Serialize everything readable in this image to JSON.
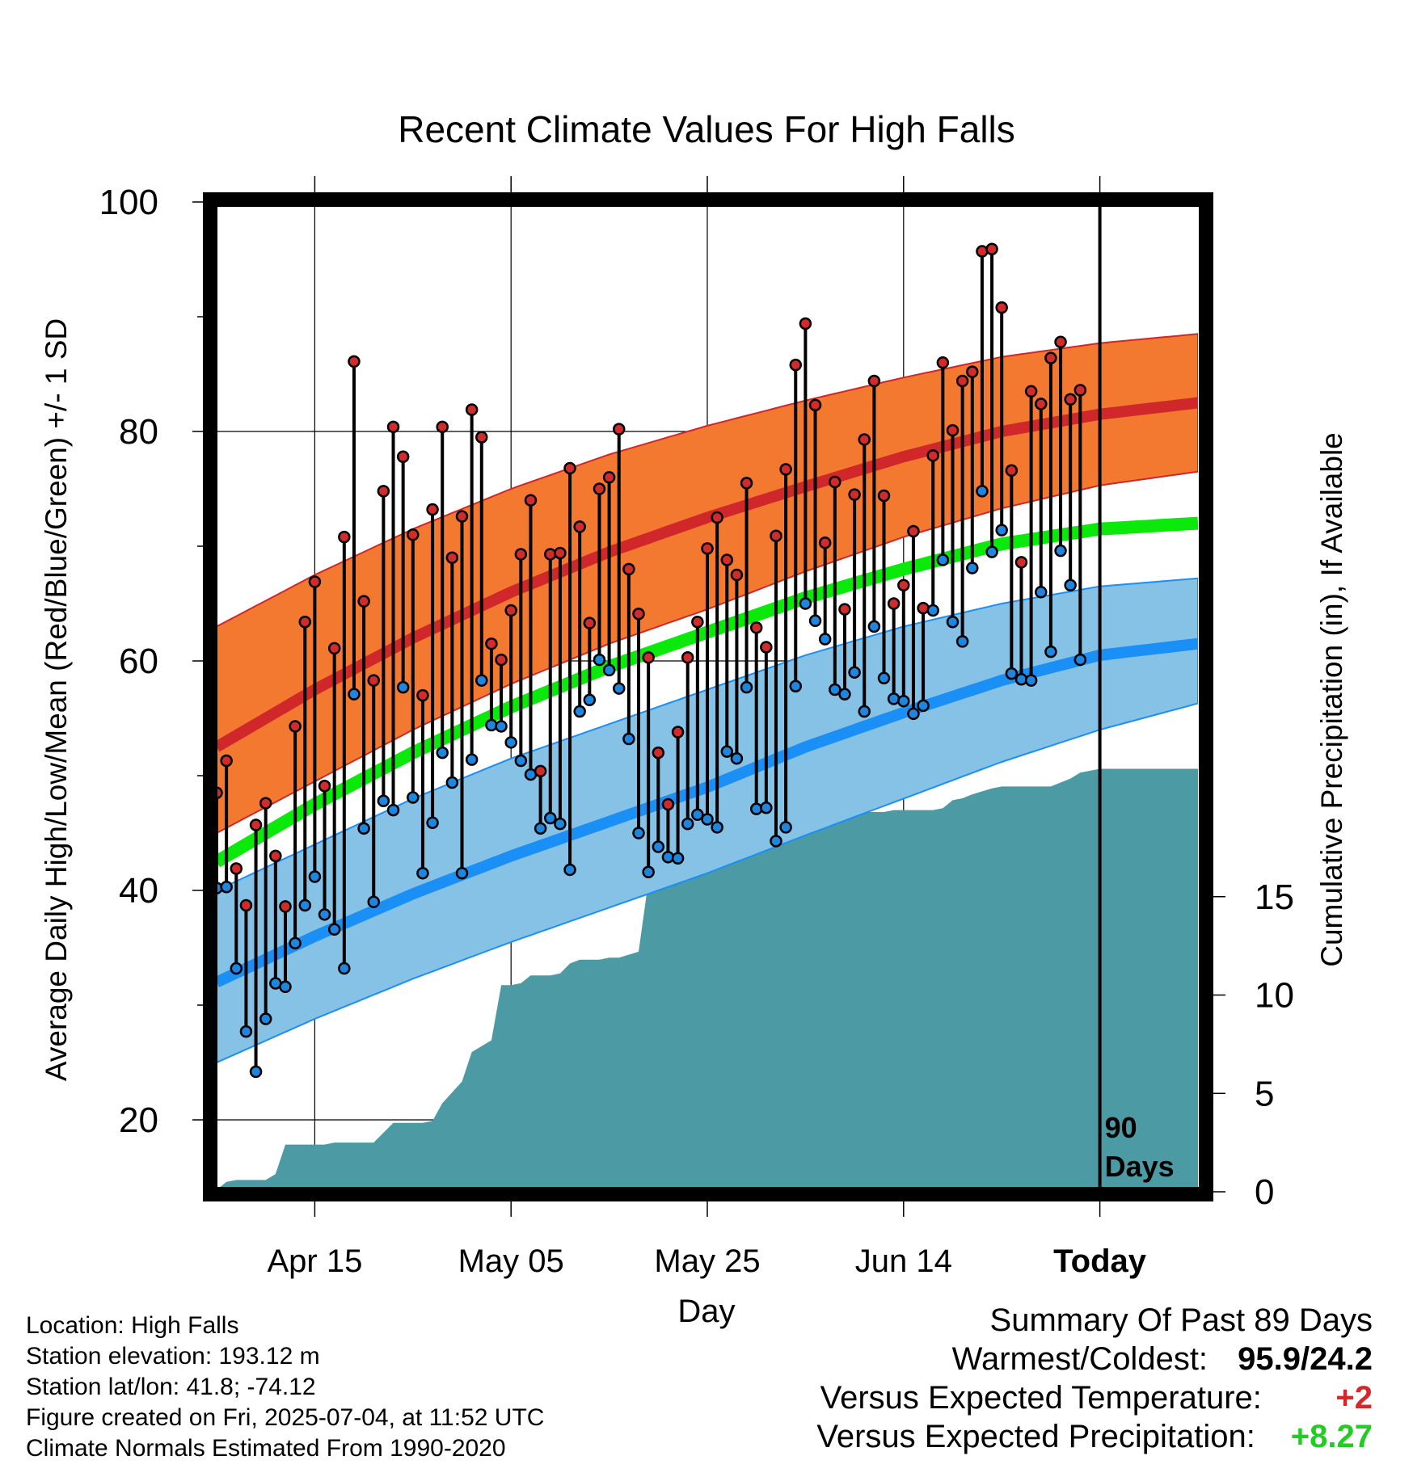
{
  "chart_data": {
    "type": "line",
    "title": "Recent Climate Values For High Falls",
    "xlabel": "Day",
    "ylabel": "Average Daily High/Low/Mean (Red/Blue/Green) +/- 1 SD",
    "ylabel_right": "Cumulative Precipitation (in), If Available",
    "x_ticks": [
      "Apr 15",
      "May 05",
      "May 25",
      "Jun 14",
      "Today"
    ],
    "y_ticks": [
      "20",
      "40",
      "60",
      "80",
      "100"
    ],
    "y2_ticks": [
      "0",
      "5",
      "10",
      "15"
    ],
    "xlim_days": [
      1,
      101
    ],
    "ylim": [
      14,
      103
    ],
    "y2lim": [
      0,
      36
    ],
    "today_day": 91,
    "today_label": [
      "90",
      "Days"
    ],
    "x_tick_days": [
      11,
      31,
      51,
      71,
      91
    ],
    "normals": {
      "days": [
        1,
        11,
        21,
        31,
        41,
        51,
        61,
        71,
        81,
        91,
        101
      ],
      "high_mean": [
        52.5,
        57.5,
        62.0,
        66.0,
        69.5,
        72.5,
        75.2,
        77.8,
        80.0,
        81.5,
        82.5
      ],
      "high_upper": [
        63.0,
        67.5,
        71.5,
        75.0,
        78.0,
        80.5,
        82.7,
        84.7,
        86.5,
        87.7,
        88.5
      ],
      "high_lower": [
        45.0,
        49.5,
        54.0,
        58.0,
        61.5,
        64.5,
        67.8,
        70.8,
        73.3,
        75.3,
        76.5
      ],
      "mean": [
        42.5,
        47.5,
        52.0,
        56.0,
        59.5,
        62.5,
        65.5,
        68.0,
        70.2,
        71.5,
        72.0
      ],
      "low_mean": [
        32.0,
        36.0,
        39.7,
        43.0,
        46.0,
        49.0,
        52.5,
        55.5,
        58.3,
        60.5,
        61.5
      ],
      "low_upper": [
        40.0,
        44.0,
        48.0,
        51.5,
        54.5,
        57.5,
        60.5,
        63.0,
        65.0,
        66.5,
        67.2
      ],
      "low_lower": [
        25.0,
        28.8,
        32.3,
        35.5,
        38.5,
        41.5,
        44.8,
        48.0,
        51.2,
        54.0,
        56.3
      ]
    },
    "daily_high": [
      48.5,
      51.3,
      41.9,
      38.7,
      45.7,
      47.6,
      43.0,
      38.6,
      54.3,
      63.4,
      66.9,
      49.1,
      61.1,
      70.8,
      86.1,
      65.2,
      58.3,
      74.8,
      80.4,
      77.8,
      71.0,
      57.0,
      73.2,
      80.4,
      69.0,
      72.6,
      81.9,
      79.5,
      61.5,
      60.1,
      64.4,
      69.3,
      74.0,
      50.4,
      69.3,
      69.4,
      76.8,
      71.7,
      63.3,
      75.0,
      76.0,
      80.2,
      68.0,
      64.1,
      60.3,
      52.0,
      47.5,
      53.8,
      60.3,
      63.4,
      69.8,
      72.5,
      68.8,
      67.5,
      75.5,
      62.9,
      61.2,
      70.9,
      76.7,
      85.8,
      89.4,
      82.3,
      70.3,
      75.6,
      64.5,
      74.5,
      79.3,
      84.4,
      74.4,
      65.0,
      66.6,
      71.3,
      64.6,
      77.9,
      86.0,
      80.1,
      84.4,
      85.2,
      95.7,
      95.9,
      90.8,
      76.6,
      68.6,
      83.5,
      82.4,
      86.4,
      87.8,
      82.8,
      83.6
    ],
    "daily_low": [
      40.2,
      40.3,
      33.2,
      27.7,
      24.2,
      28.8,
      31.9,
      31.6,
      35.4,
      38.7,
      41.2,
      37.9,
      36.6,
      33.2,
      57.1,
      45.4,
      39.0,
      47.8,
      47.0,
      57.7,
      48.1,
      41.5,
      45.9,
      52.0,
      49.4,
      41.5,
      51.4,
      58.3,
      54.4,
      54.3,
      52.9,
      51.3,
      50.1,
      45.4,
      46.3,
      45.8,
      41.8,
      55.6,
      56.6,
      60.1,
      59.2,
      57.6,
      53.2,
      45.0,
      41.6,
      43.8,
      42.9,
      42.8,
      45.8,
      46.6,
      46.2,
      45.5,
      52.1,
      51.5,
      57.7,
      47.1,
      47.2,
      44.3,
      45.5,
      57.8,
      65.0,
      63.5,
      61.9,
      57.5,
      57.1,
      59.0,
      55.6,
      63.0,
      58.5,
      56.7,
      56.5,
      55.4,
      56.1,
      64.4,
      68.8,
      63.4,
      61.7,
      68.1,
      74.8,
      69.5,
      71.4,
      58.9,
      58.4,
      58.3,
      66.0,
      60.8,
      69.6,
      66.6,
      60.1
    ],
    "cumulative_precip": {
      "days": [
        1,
        2,
        3,
        6,
        7,
        8,
        9,
        12,
        13,
        15,
        16,
        17,
        19,
        20,
        22,
        23,
        24,
        26,
        27,
        28,
        29,
        30,
        31,
        32,
        33,
        34,
        35,
        36,
        37,
        38,
        39,
        40,
        41,
        42,
        44,
        45,
        46,
        47,
        49,
        51,
        52,
        53,
        54,
        55,
        56,
        57,
        58,
        59,
        61,
        62,
        63,
        65,
        66,
        67,
        69,
        70,
        71,
        72,
        73,
        74,
        75,
        76,
        77,
        78,
        80,
        81,
        82,
        83,
        86,
        87,
        88,
        89,
        90,
        91,
        101
      ],
      "values": [
        0.1,
        0.5,
        0.6,
        0.6,
        0.9,
        2.4,
        2.4,
        2.4,
        2.5,
        2.5,
        2.5,
        2.5,
        3.5,
        3.5,
        3.5,
        3.6,
        4.5,
        5.6,
        7.1,
        7.4,
        7.7,
        10.5,
        10.5,
        10.6,
        11.0,
        11.0,
        11.0,
        11.1,
        11.6,
        11.8,
        11.8,
        11.8,
        11.9,
        11.9,
        12.2,
        15.8,
        15.8,
        15.8,
        15.8,
        16.6,
        16.9,
        17.0,
        17.0,
        17.4,
        17.4,
        17.5,
        18.1,
        18.8,
        19.0,
        19.1,
        19.3,
        19.3,
        19.3,
        19.3,
        19.3,
        19.4,
        19.4,
        19.4,
        19.4,
        19.4,
        19.5,
        19.9,
        20.0,
        20.2,
        20.5,
        20.6,
        20.6,
        20.6,
        20.6,
        20.8,
        21.0,
        21.3,
        21.4,
        21.5,
        21.5
      ]
    },
    "colors": {
      "high_band": "#f47930",
      "high_line": "#d0272b",
      "mean_line": "#0be90b",
      "low_band": "#86c1e6",
      "low_line": "#1a8ff5",
      "precip": "#4b9aa4",
      "high_marker": "#d12b2b",
      "low_marker": "#1f86e0"
    },
    "grid": true
  },
  "info": {
    "location": "Location: High Falls",
    "elevation": "Station elevation: 193.12 m",
    "latlon": "Station lat/lon: 41.8; -74.12",
    "created": "Figure created on Fri, 2025-07-04, at 11:52 UTC",
    "normals": "Climate Normals Estimated From 1990-2020"
  },
  "summary": {
    "title": "Summary Of Past 89 Days",
    "warm_label": "Warmest/Coldest:",
    "warm_value": "95.9/24.2",
    "temp_label": "Versus Expected Temperature:",
    "temp_value": "+2",
    "precip_label": "Versus Expected Precipitation:",
    "precip_value": "+8.27"
  }
}
